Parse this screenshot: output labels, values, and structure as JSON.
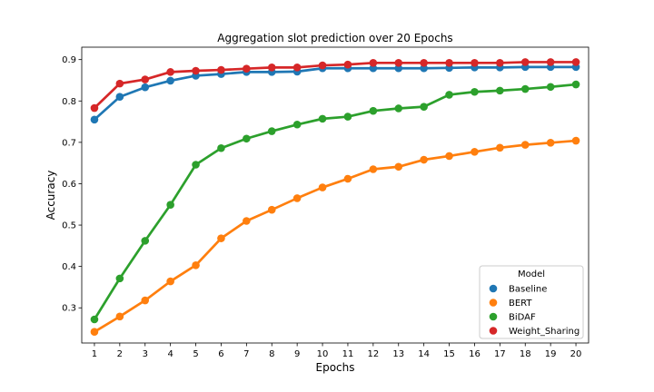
{
  "chart_data": {
    "type": "line",
    "title": "Aggregation slot prediction over 20 Epochs",
    "xlabel": "Epochs",
    "ylabel": "Accuracy",
    "categories": [
      "1",
      "2",
      "3",
      "4",
      "5",
      "6",
      "7",
      "8",
      "9",
      "10",
      "11",
      "12",
      "13",
      "14",
      "15",
      "16",
      "17",
      "18",
      "19",
      "20"
    ],
    "ylim": [
      0.215,
      0.93
    ],
    "yticks": [
      0.3,
      0.4,
      0.5,
      0.6,
      0.7,
      0.8,
      0.9
    ],
    "ytick_labels": [
      "0.3",
      "0.4",
      "0.5",
      "0.6",
      "0.7",
      "0.8",
      "0.9"
    ],
    "grid": false,
    "legend": {
      "title": "Model",
      "placement": "bottom-right"
    },
    "series": [
      {
        "name": "Baseline",
        "color": "#1f77b4",
        "values": [
          0.755,
          0.81,
          0.833,
          0.849,
          0.861,
          0.865,
          0.87,
          0.87,
          0.871,
          0.879,
          0.879,
          0.879,
          0.879,
          0.879,
          0.88,
          0.881,
          0.881,
          0.882,
          0.882,
          0.882
        ]
      },
      {
        "name": "BERT",
        "color": "#ff7f0e",
        "values": [
          0.242,
          0.279,
          0.318,
          0.364,
          0.403,
          0.468,
          0.51,
          0.537,
          0.565,
          0.591,
          0.612,
          0.635,
          0.641,
          0.658,
          0.667,
          0.677,
          0.687,
          0.694,
          0.699,
          0.704
        ]
      },
      {
        "name": "BiDAF",
        "color": "#2ca02c",
        "values": [
          0.272,
          0.371,
          0.462,
          0.549,
          0.646,
          0.686,
          0.709,
          0.727,
          0.743,
          0.757,
          0.762,
          0.776,
          0.782,
          0.786,
          0.815,
          0.822,
          0.825,
          0.829,
          0.834,
          0.84
        ]
      },
      {
        "name": "Weight_Sharing",
        "color": "#d62728",
        "values": [
          0.783,
          0.842,
          0.852,
          0.87,
          0.873,
          0.875,
          0.878,
          0.881,
          0.881,
          0.886,
          0.888,
          0.892,
          0.892,
          0.892,
          0.892,
          0.892,
          0.892,
          0.894,
          0.894,
          0.894
        ]
      }
    ]
  }
}
